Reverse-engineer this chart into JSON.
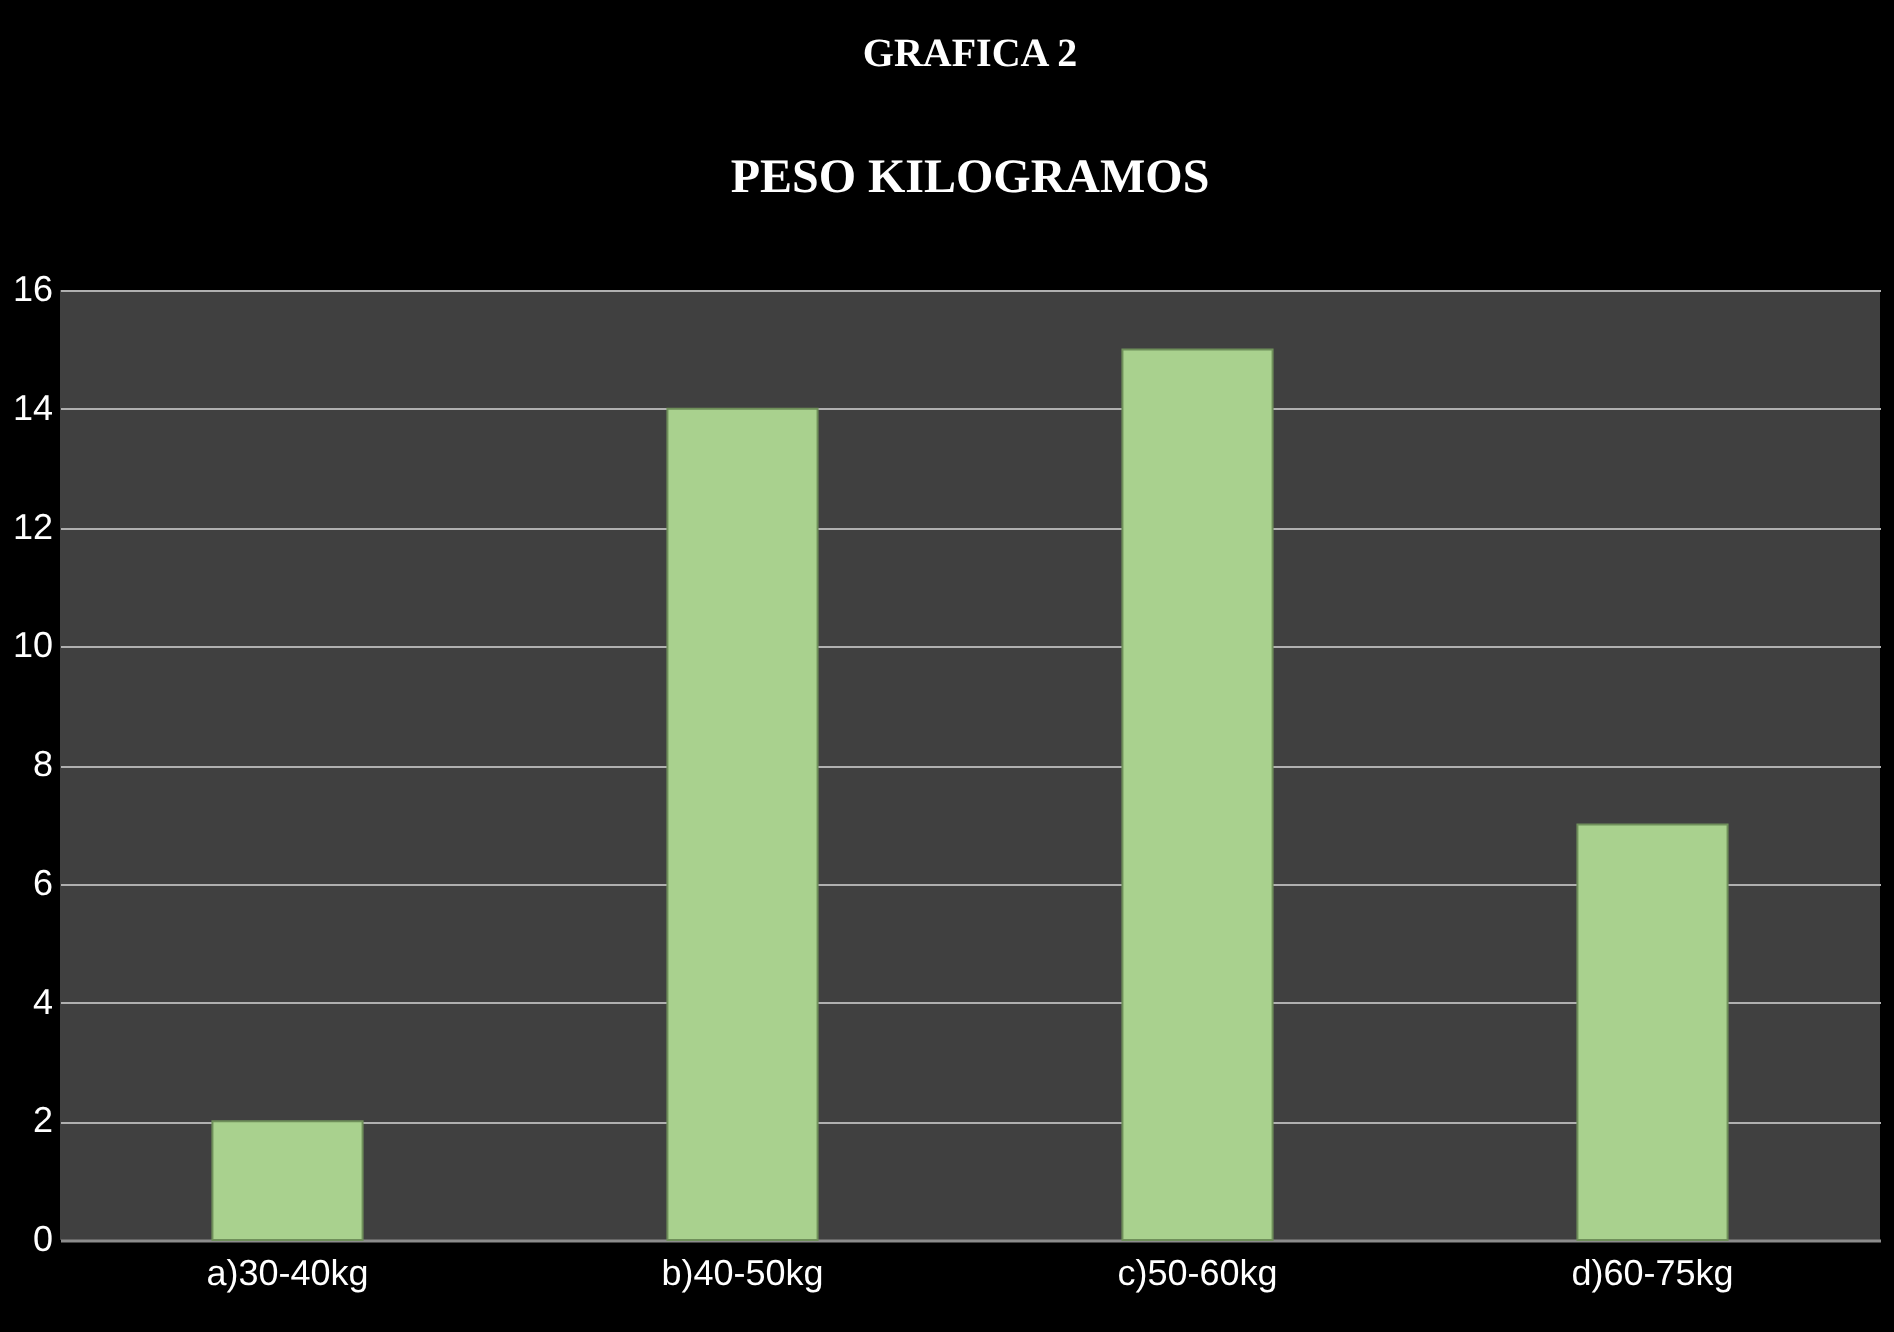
{
  "chart_data": {
    "type": "bar",
    "title": "GRAFICA 2",
    "subtitle": "PESO KILOGRAMOS",
    "categories": [
      "a)30-40kg",
      "b)40-50kg",
      "c)50-60kg",
      "d)60-75kg"
    ],
    "values": [
      2,
      14,
      15,
      7
    ],
    "color": "#a9d18e",
    "ylim": [
      0,
      16
    ],
    "yticks": [
      0,
      2,
      4,
      6,
      8,
      10,
      12,
      14,
      16
    ],
    "grid": "y",
    "legend": false
  }
}
